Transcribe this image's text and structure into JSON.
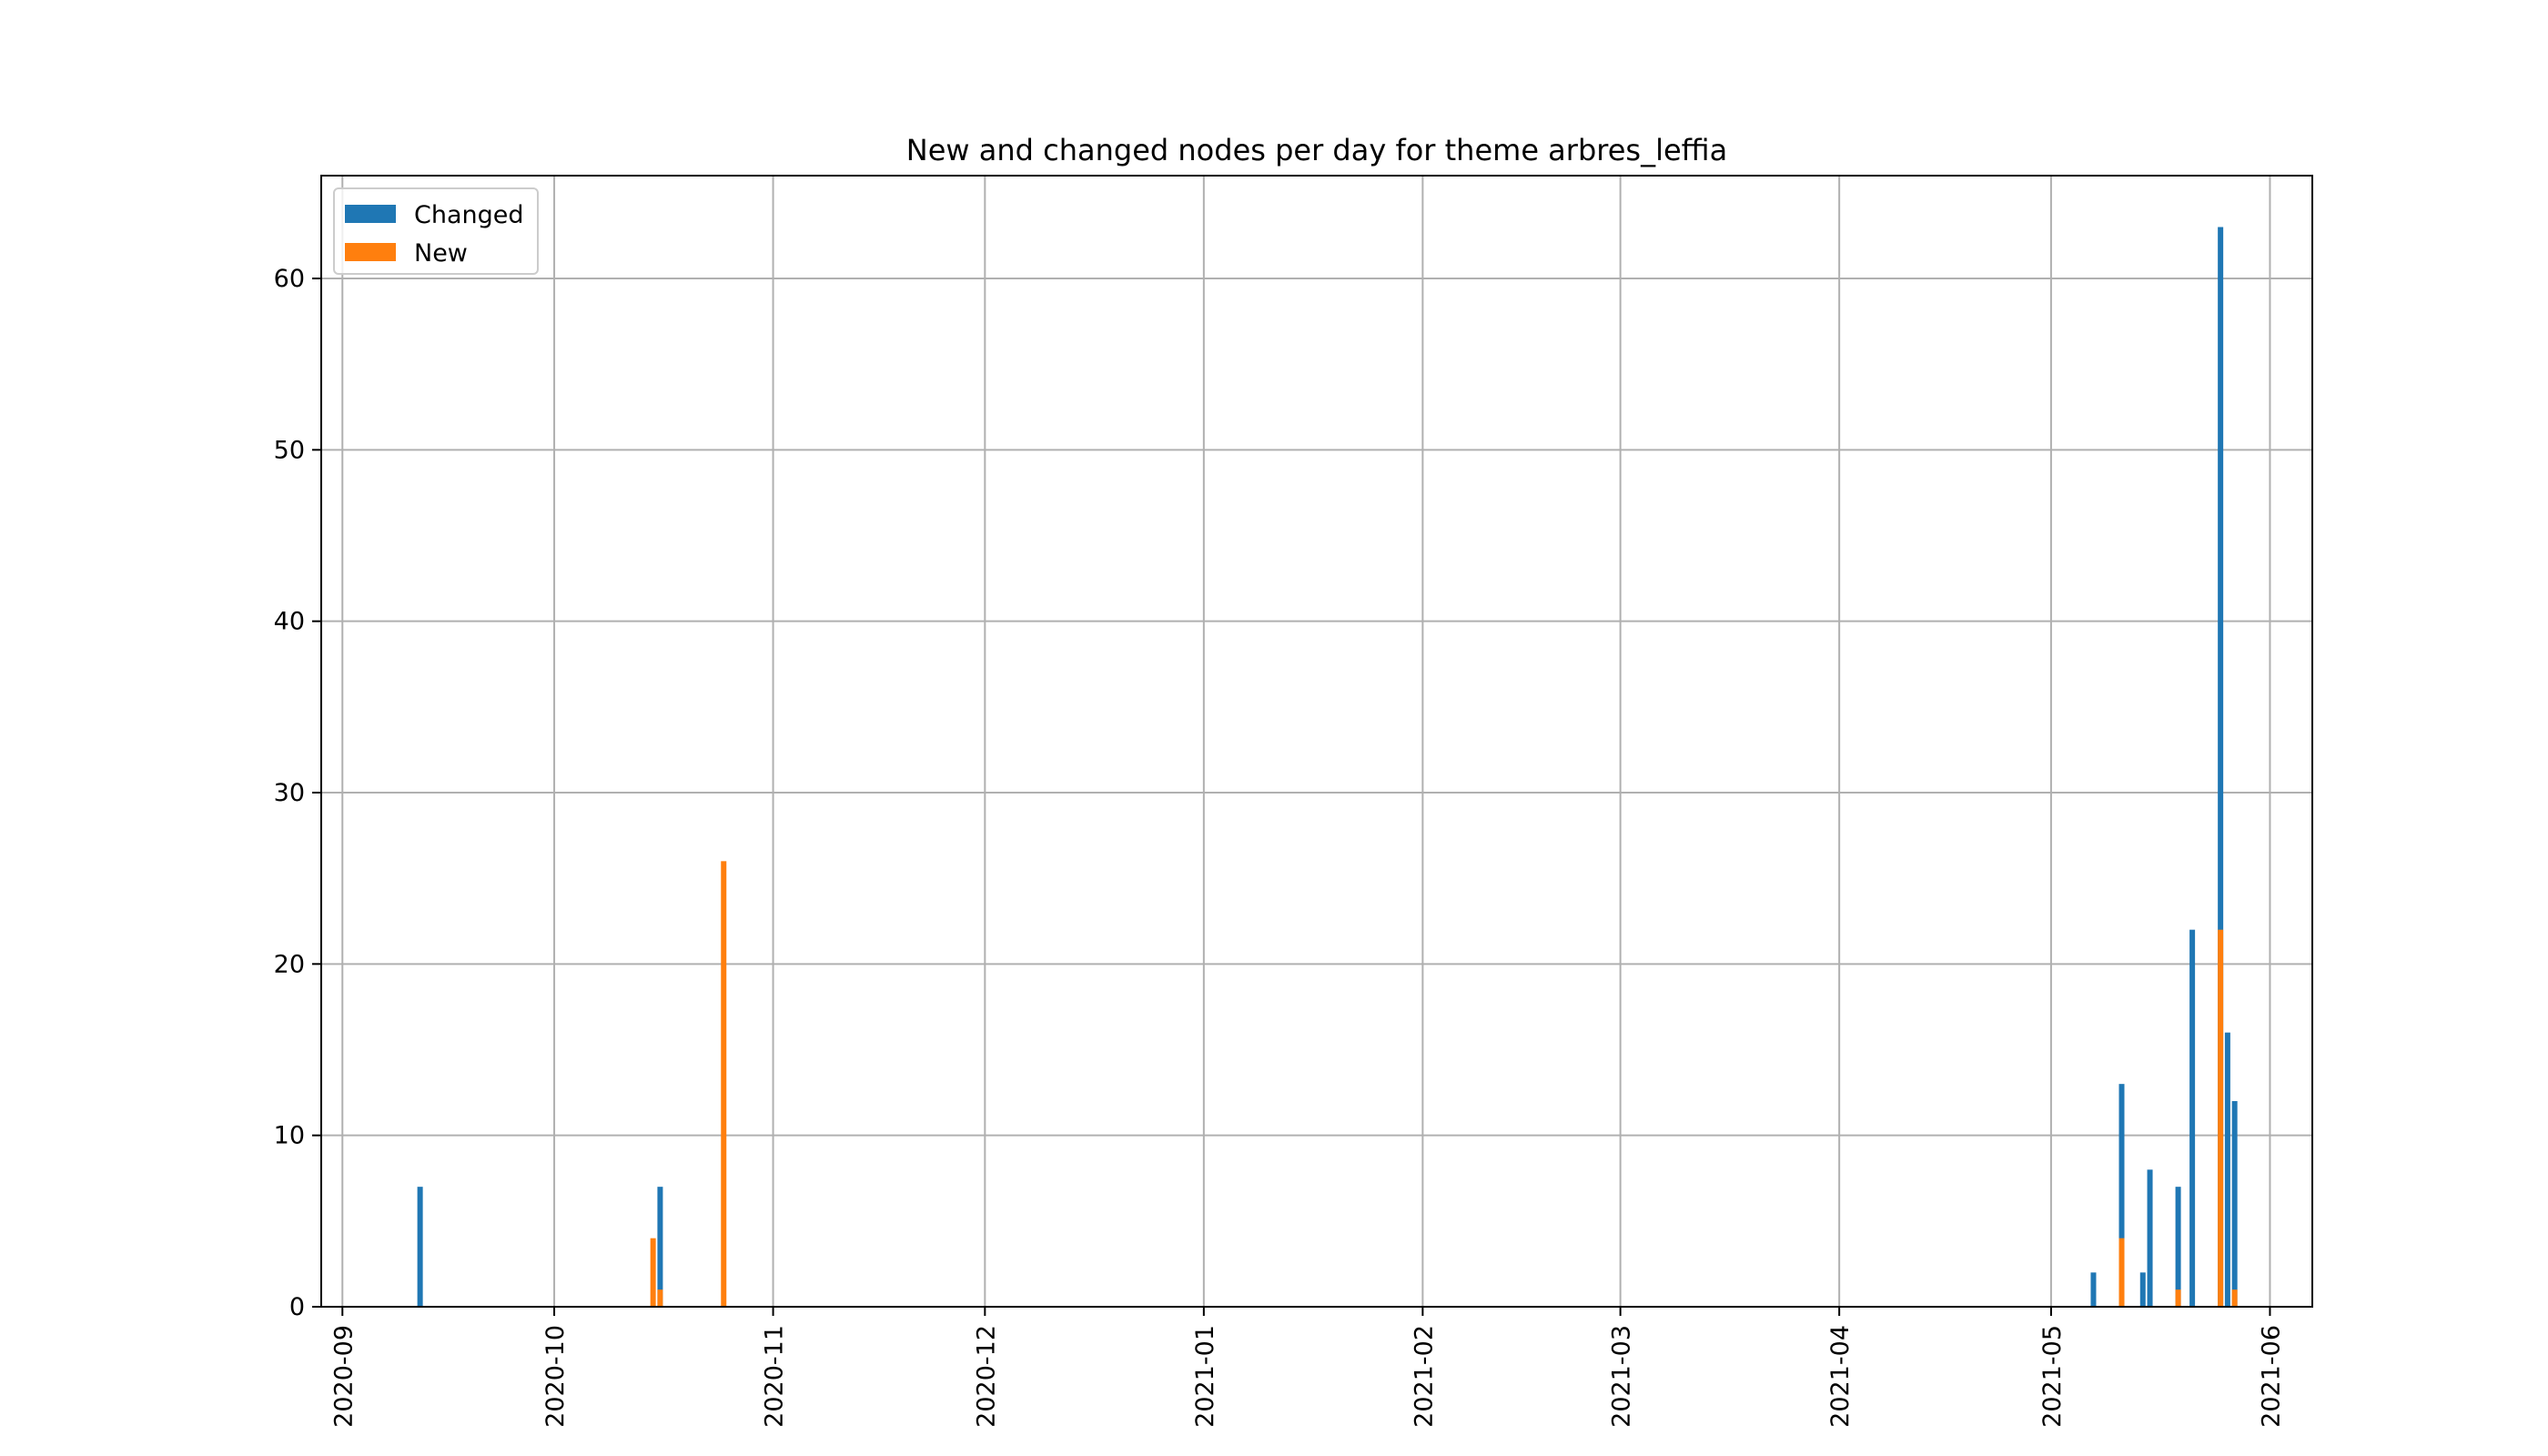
{
  "chart_data": {
    "type": "bar",
    "title": "New and changed nodes per day for theme arbres_leffia",
    "xlabel": "",
    "ylabel": "",
    "x_axis_type": "date",
    "xlim": [
      "2020-08-29",
      "2021-06-07"
    ],
    "ylim": [
      0,
      66
    ],
    "x_ticks": [
      "2020-09",
      "2020-10",
      "2020-11",
      "2020-12",
      "2021-01",
      "2021-02",
      "2021-03",
      "2021-04",
      "2021-05",
      "2021-06"
    ],
    "y_ticks": [
      0,
      10,
      20,
      30,
      40,
      50,
      60
    ],
    "grid": true,
    "legend_position": "top-left",
    "series": [
      {
        "name": "Changed",
        "color": "#1f77b4",
        "points": [
          {
            "x": "2020-09-12",
            "y": 7
          },
          {
            "x": "2020-10-16",
            "y": 7
          },
          {
            "x": "2021-05-07",
            "y": 2
          },
          {
            "x": "2021-05-11",
            "y": 13
          },
          {
            "x": "2021-05-14",
            "y": 2
          },
          {
            "x": "2021-05-15",
            "y": 8
          },
          {
            "x": "2021-05-19",
            "y": 7
          },
          {
            "x": "2021-05-21",
            "y": 22
          },
          {
            "x": "2021-05-25",
            "y": 63
          },
          {
            "x": "2021-05-26",
            "y": 16
          },
          {
            "x": "2021-05-27",
            "y": 12
          }
        ]
      },
      {
        "name": "New",
        "color": "#ff7f0e",
        "points": [
          {
            "x": "2020-10-15",
            "y": 4
          },
          {
            "x": "2020-10-16",
            "y": 1
          },
          {
            "x": "2020-10-25",
            "y": 26
          },
          {
            "x": "2021-05-11",
            "y": 4
          },
          {
            "x": "2021-05-19",
            "y": 1
          },
          {
            "x": "2021-05-25",
            "y": 22
          },
          {
            "x": "2021-05-27",
            "y": 1
          }
        ]
      }
    ]
  }
}
